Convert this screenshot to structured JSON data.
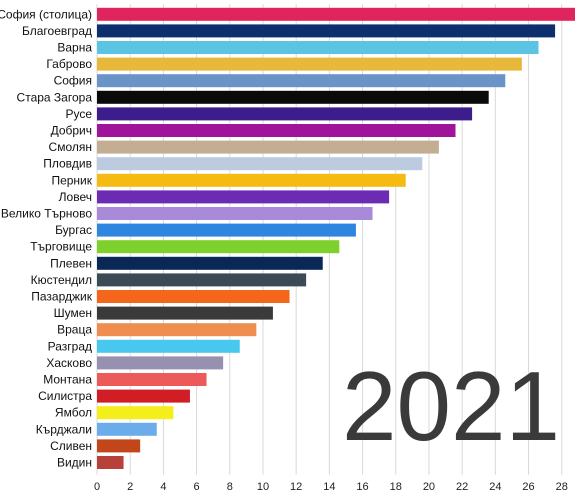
{
  "chart_data": {
    "type": "bar",
    "orientation": "horizontal",
    "title": "",
    "xlabel": "",
    "ylabel": "",
    "xlim": [
      0,
      28.8
    ],
    "grid": true,
    "annotation": "2021",
    "categories": [
      "София (столица)",
      "Благоевград",
      "Варна",
      "Габрово",
      "София",
      "Стара Загора",
      "Русе",
      "Добрич",
      "Смолян",
      "Пловдив",
      "Перник",
      "Ловеч",
      "Велико Търново",
      "Бургас",
      "Търговище",
      "Плевен",
      "Кюстендил",
      "Пазарджик",
      "Шумен",
      "Враца",
      "Разград",
      "Хасково",
      "Монтана",
      "Силистра",
      "Ямбол",
      "Кърджали",
      "Сливен",
      "Видин"
    ],
    "values": [
      28.8,
      27.6,
      26.6,
      25.6,
      24.6,
      23.6,
      22.6,
      21.6,
      20.6,
      19.6,
      18.6,
      17.6,
      16.6,
      15.6,
      14.6,
      13.6,
      12.6,
      11.6,
      10.6,
      9.6,
      8.6,
      7.6,
      6.6,
      5.6,
      4.6,
      3.6,
      2.6,
      1.6
    ],
    "colors": [
      "#e0245e",
      "#0d2f6e",
      "#5bc4e2",
      "#e8b83a",
      "#6a93c8",
      "#0a0a0a",
      "#3d1c8c",
      "#a0149a",
      "#c4ae93",
      "#bccbe0",
      "#f5bb12",
      "#6c2bb3",
      "#a98ad9",
      "#2f86e0",
      "#7ed12d",
      "#0b2756",
      "#3a4b56",
      "#f5661c",
      "#3a3a3a",
      "#f08e4f",
      "#48c8ef",
      "#9890b0",
      "#ec5a5a",
      "#d01e24",
      "#f4ee1a",
      "#6aadea",
      "#c2461a",
      "#b8403a"
    ],
    "x_ticks": [
      0,
      2,
      4,
      6,
      8,
      10,
      12,
      14,
      16,
      18,
      20,
      22,
      24,
      26,
      28
    ]
  }
}
